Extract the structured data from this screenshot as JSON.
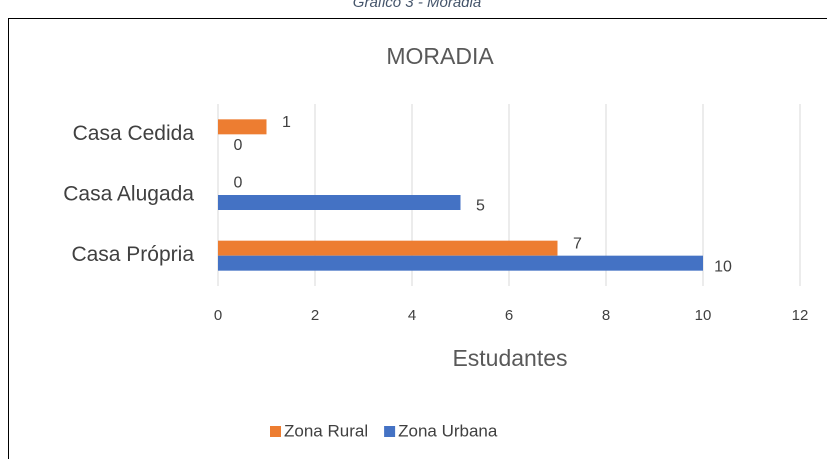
{
  "caption": "Gráfico 3 - Moradia",
  "chart_data": {
    "type": "bar",
    "orientation": "horizontal",
    "title": "MORADIA",
    "categories": [
      "Casa Cedida",
      "Casa Alugada",
      "Casa Própria"
    ],
    "series": [
      {
        "name": "Zona Rural",
        "color": "#ed7d31",
        "values": [
          1,
          0,
          7
        ]
      },
      {
        "name": "Zona Urbana",
        "color": "#4472c4",
        "values": [
          0,
          5,
          10
        ]
      }
    ],
    "xlabel": "Estudantes",
    "xlim": [
      0,
      12
    ],
    "xticks": [
      0,
      2,
      4,
      6,
      8,
      10,
      12
    ],
    "grid": true,
    "legend": "bottom"
  }
}
